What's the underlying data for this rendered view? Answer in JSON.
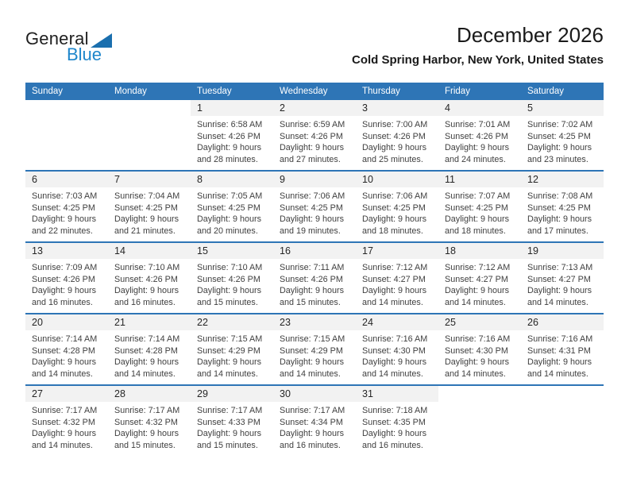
{
  "logo": {
    "general": "General",
    "blue": "Blue"
  },
  "header": {
    "title": "December 2026",
    "subtitle": "Cold Spring Harbor, New York, United States"
  },
  "colors": {
    "header_bg": "#2E75B6",
    "week_divider": "#2E75B6",
    "date_band_bg": "#F2F2F2",
    "logo_blue_text": "#1E86CB",
    "logo_triangle": "#1A6FAE"
  },
  "weekdays": [
    "Sunday",
    "Monday",
    "Tuesday",
    "Wednesday",
    "Thursday",
    "Friday",
    "Saturday"
  ],
  "weeks": [
    [
      null,
      null,
      {
        "day": "1",
        "lines": [
          "Sunrise: 6:58 AM",
          "Sunset: 4:26 PM",
          "Daylight: 9 hours",
          "and 28 minutes."
        ]
      },
      {
        "day": "2",
        "lines": [
          "Sunrise: 6:59 AM",
          "Sunset: 4:26 PM",
          "Daylight: 9 hours",
          "and 27 minutes."
        ]
      },
      {
        "day": "3",
        "lines": [
          "Sunrise: 7:00 AM",
          "Sunset: 4:26 PM",
          "Daylight: 9 hours",
          "and 25 minutes."
        ]
      },
      {
        "day": "4",
        "lines": [
          "Sunrise: 7:01 AM",
          "Sunset: 4:26 PM",
          "Daylight: 9 hours",
          "and 24 minutes."
        ]
      },
      {
        "day": "5",
        "lines": [
          "Sunrise: 7:02 AM",
          "Sunset: 4:25 PM",
          "Daylight: 9 hours",
          "and 23 minutes."
        ]
      }
    ],
    [
      {
        "day": "6",
        "lines": [
          "Sunrise: 7:03 AM",
          "Sunset: 4:25 PM",
          "Daylight: 9 hours",
          "and 22 minutes."
        ]
      },
      {
        "day": "7",
        "lines": [
          "Sunrise: 7:04 AM",
          "Sunset: 4:25 PM",
          "Daylight: 9 hours",
          "and 21 minutes."
        ]
      },
      {
        "day": "8",
        "lines": [
          "Sunrise: 7:05 AM",
          "Sunset: 4:25 PM",
          "Daylight: 9 hours",
          "and 20 minutes."
        ]
      },
      {
        "day": "9",
        "lines": [
          "Sunrise: 7:06 AM",
          "Sunset: 4:25 PM",
          "Daylight: 9 hours",
          "and 19 minutes."
        ]
      },
      {
        "day": "10",
        "lines": [
          "Sunrise: 7:06 AM",
          "Sunset: 4:25 PM",
          "Daylight: 9 hours",
          "and 18 minutes."
        ]
      },
      {
        "day": "11",
        "lines": [
          "Sunrise: 7:07 AM",
          "Sunset: 4:25 PM",
          "Daylight: 9 hours",
          "and 18 minutes."
        ]
      },
      {
        "day": "12",
        "lines": [
          "Sunrise: 7:08 AM",
          "Sunset: 4:25 PM",
          "Daylight: 9 hours",
          "and 17 minutes."
        ]
      }
    ],
    [
      {
        "day": "13",
        "lines": [
          "Sunrise: 7:09 AM",
          "Sunset: 4:26 PM",
          "Daylight: 9 hours",
          "and 16 minutes."
        ]
      },
      {
        "day": "14",
        "lines": [
          "Sunrise: 7:10 AM",
          "Sunset: 4:26 PM",
          "Daylight: 9 hours",
          "and 16 minutes."
        ]
      },
      {
        "day": "15",
        "lines": [
          "Sunrise: 7:10 AM",
          "Sunset: 4:26 PM",
          "Daylight: 9 hours",
          "and 15 minutes."
        ]
      },
      {
        "day": "16",
        "lines": [
          "Sunrise: 7:11 AM",
          "Sunset: 4:26 PM",
          "Daylight: 9 hours",
          "and 15 minutes."
        ]
      },
      {
        "day": "17",
        "lines": [
          "Sunrise: 7:12 AM",
          "Sunset: 4:27 PM",
          "Daylight: 9 hours",
          "and 14 minutes."
        ]
      },
      {
        "day": "18",
        "lines": [
          "Sunrise: 7:12 AM",
          "Sunset: 4:27 PM",
          "Daylight: 9 hours",
          "and 14 minutes."
        ]
      },
      {
        "day": "19",
        "lines": [
          "Sunrise: 7:13 AM",
          "Sunset: 4:27 PM",
          "Daylight: 9 hours",
          "and 14 minutes."
        ]
      }
    ],
    [
      {
        "day": "20",
        "lines": [
          "Sunrise: 7:14 AM",
          "Sunset: 4:28 PM",
          "Daylight: 9 hours",
          "and 14 minutes."
        ]
      },
      {
        "day": "21",
        "lines": [
          "Sunrise: 7:14 AM",
          "Sunset: 4:28 PM",
          "Daylight: 9 hours",
          "and 14 minutes."
        ]
      },
      {
        "day": "22",
        "lines": [
          "Sunrise: 7:15 AM",
          "Sunset: 4:29 PM",
          "Daylight: 9 hours",
          "and 14 minutes."
        ]
      },
      {
        "day": "23",
        "lines": [
          "Sunrise: 7:15 AM",
          "Sunset: 4:29 PM",
          "Daylight: 9 hours",
          "and 14 minutes."
        ]
      },
      {
        "day": "24",
        "lines": [
          "Sunrise: 7:16 AM",
          "Sunset: 4:30 PM",
          "Daylight: 9 hours",
          "and 14 minutes."
        ]
      },
      {
        "day": "25",
        "lines": [
          "Sunrise: 7:16 AM",
          "Sunset: 4:30 PM",
          "Daylight: 9 hours",
          "and 14 minutes."
        ]
      },
      {
        "day": "26",
        "lines": [
          "Sunrise: 7:16 AM",
          "Sunset: 4:31 PM",
          "Daylight: 9 hours",
          "and 14 minutes."
        ]
      }
    ],
    [
      {
        "day": "27",
        "lines": [
          "Sunrise: 7:17 AM",
          "Sunset: 4:32 PM",
          "Daylight: 9 hours",
          "and 14 minutes."
        ]
      },
      {
        "day": "28",
        "lines": [
          "Sunrise: 7:17 AM",
          "Sunset: 4:32 PM",
          "Daylight: 9 hours",
          "and 15 minutes."
        ]
      },
      {
        "day": "29",
        "lines": [
          "Sunrise: 7:17 AM",
          "Sunset: 4:33 PM",
          "Daylight: 9 hours",
          "and 15 minutes."
        ]
      },
      {
        "day": "30",
        "lines": [
          "Sunrise: 7:17 AM",
          "Sunset: 4:34 PM",
          "Daylight: 9 hours",
          "and 16 minutes."
        ]
      },
      {
        "day": "31",
        "lines": [
          "Sunrise: 7:18 AM",
          "Sunset: 4:35 PM",
          "Daylight: 9 hours",
          "and 16 minutes."
        ]
      },
      null,
      null
    ]
  ]
}
